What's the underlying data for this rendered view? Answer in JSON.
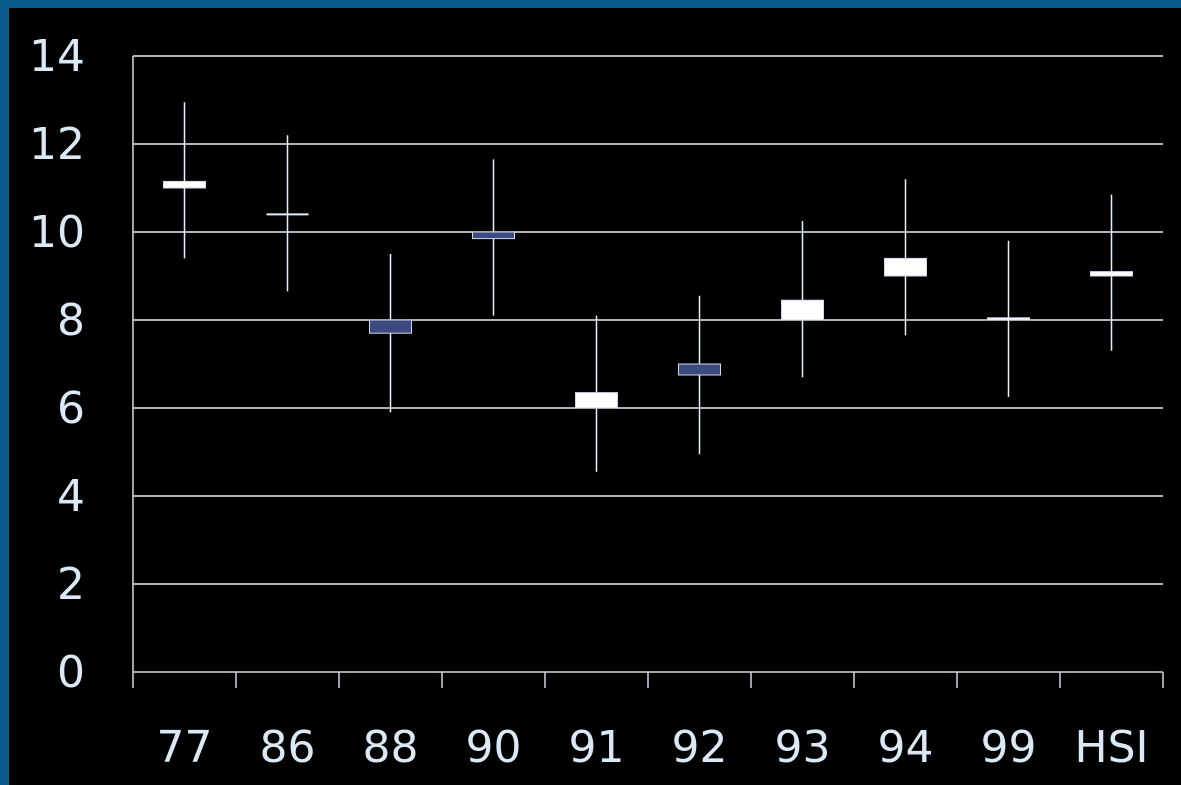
{
  "chart_data": {
    "type": "candlestick",
    "title": "",
    "xlabel": "",
    "ylabel": "",
    "ylim": [
      0,
      14
    ],
    "yticks": [
      "0",
      "2",
      "4",
      "6",
      "8",
      "10",
      "12",
      "14"
    ],
    "grid": true,
    "categories": [
      "77",
      "86",
      "88",
      "90",
      "91",
      "92",
      "93",
      "94",
      "99",
      "HSI"
    ],
    "series": [
      {
        "values": [
          {
            "open": 11.0,
            "high": 12.95,
            "low": 9.4,
            "close": 11.15
          },
          {
            "open": 10.4,
            "high": 12.2,
            "low": 8.65,
            "close": 10.4
          },
          {
            "open": 8.0,
            "high": 9.5,
            "low": 5.9,
            "close": 7.7
          },
          {
            "open": 10.0,
            "high": 11.65,
            "low": 8.1,
            "close": 9.85
          },
          {
            "open": 6.0,
            "high": 8.1,
            "low": 4.55,
            "close": 6.35
          },
          {
            "open": 7.0,
            "high": 8.55,
            "low": 4.95,
            "close": 6.75
          },
          {
            "open": 8.0,
            "high": 10.25,
            "low": 6.7,
            "close": 8.45
          },
          {
            "open": 9.0,
            "high": 11.2,
            "low": 7.65,
            "close": 9.4
          },
          {
            "open": 8.0,
            "high": 9.8,
            "low": 6.25,
            "close": 8.05
          },
          {
            "open": 9.0,
            "high": 10.85,
            "low": 7.3,
            "close": 9.1
          }
        ]
      }
    ],
    "colors": {
      "background": "#000000",
      "frame": "#0a5a8c",
      "gridline": "#e6eef7",
      "axis": "#d0d8e0",
      "text": "#dbe8f5",
      "up_candle": "#ffffff",
      "down_candle": "#3d4a80",
      "candle_edge": "#cfd8ec",
      "wick": "#e6eef7"
    }
  }
}
